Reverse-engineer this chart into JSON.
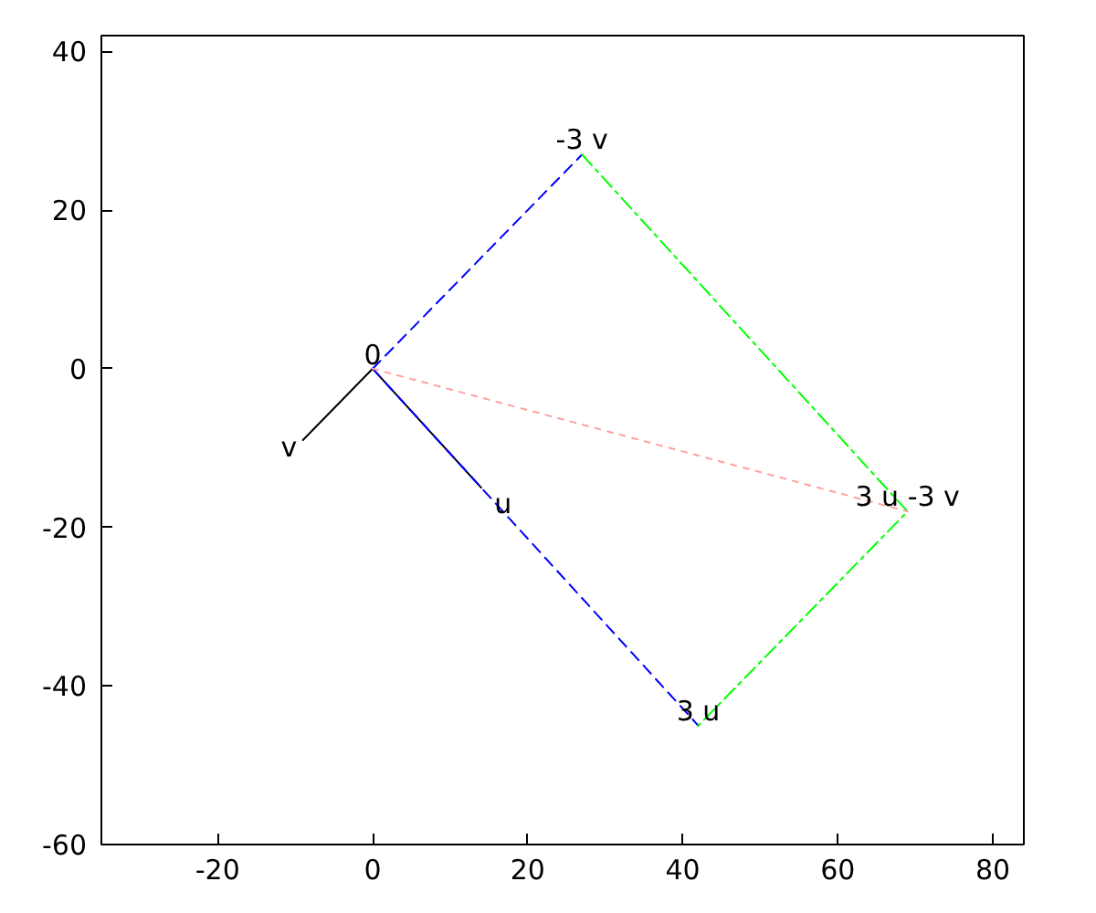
{
  "chart_data": {
    "type": "line",
    "xlim": [
      -35,
      84
    ],
    "ylim": [
      -60,
      42
    ],
    "xticks": [
      -20,
      0,
      20,
      40,
      60,
      80
    ],
    "yticks": [
      -60,
      -40,
      -20,
      0,
      20,
      40
    ],
    "series": [
      {
        "name": "u",
        "color": "#000000",
        "x": [
          0,
          14
        ],
        "values": [
          0,
          -15
        ],
        "line_style": "solid"
      },
      {
        "name": "v",
        "color": "#000000",
        "x": [
          0,
          -9
        ],
        "values": [
          0,
          -9
        ],
        "line_style": "solid"
      },
      {
        "color": "#0000ff",
        "x": [
          0,
          42
        ],
        "values": [
          0,
          -45
        ],
        "line_style": "dashed"
      },
      {
        "color": "#0000ff",
        "x": [
          0,
          27
        ],
        "values": [
          0,
          27
        ],
        "line_style": "dashed"
      },
      {
        "color": "#00ff00",
        "x": [
          27,
          69,
          42
        ],
        "values": [
          27,
          -18,
          -45
        ],
        "line_style": "dashdot"
      },
      {
        "color": "#ffa0a0",
        "x": [
          0,
          69
        ],
        "values": [
          0,
          -18
        ],
        "line_style": "dotted"
      }
    ],
    "annotations": [
      {
        "text": "0",
        "x": 0,
        "y": 0
      },
      {
        "text": "3 u",
        "x": 42,
        "y": -45
      },
      {
        "text": "-3 v",
        "x": 27,
        "y": 27
      },
      {
        "text": "3 u -3 v",
        "x": 69,
        "y": -18
      }
    ]
  }
}
